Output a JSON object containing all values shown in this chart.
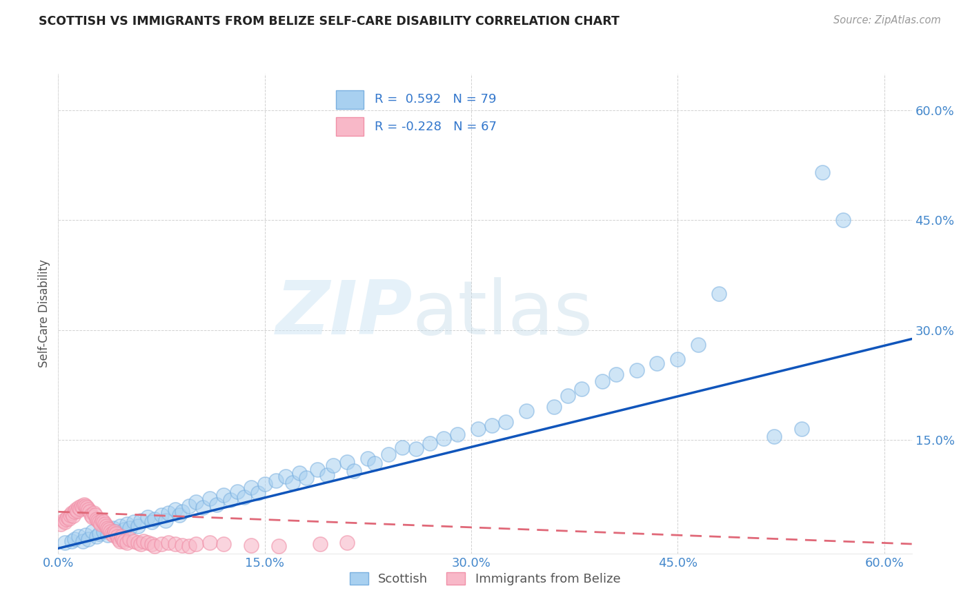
{
  "title": "SCOTTISH VS IMMIGRANTS FROM BELIZE SELF-CARE DISABILITY CORRELATION CHART",
  "source": "Source: ZipAtlas.com",
  "ylabel": "Self-Care Disability",
  "xlim": [
    0.0,
    0.62
  ],
  "ylim": [
    -0.005,
    0.65
  ],
  "xtick_labels": [
    "0.0%",
    "15.0%",
    "30.0%",
    "45.0%",
    "60.0%"
  ],
  "xtick_vals": [
    0.0,
    0.15,
    0.3,
    0.45,
    0.6
  ],
  "ytick_labels": [
    "15.0%",
    "30.0%",
    "45.0%",
    "60.0%"
  ],
  "ytick_vals": [
    0.15,
    0.3,
    0.45,
    0.6
  ],
  "r_scottish": 0.592,
  "n_scottish": 79,
  "r_belize": -0.228,
  "n_belize": 67,
  "scottish_color": "#a8d0f0",
  "scottish_edge": "#7ab0e0",
  "belize_color": "#f8b8c8",
  "belize_edge": "#f090a8",
  "trendline_scottish_color": "#1055bb",
  "trendline_belize_color": "#e06878",
  "background_color": "#ffffff",
  "scottish_x": [
    0.005,
    0.01,
    0.012,
    0.015,
    0.018,
    0.02,
    0.022,
    0.025,
    0.028,
    0.03,
    0.033,
    0.036,
    0.038,
    0.04,
    0.042,
    0.045,
    0.048,
    0.05,
    0.052,
    0.055,
    0.058,
    0.06,
    0.065,
    0.068,
    0.07,
    0.075,
    0.078,
    0.08,
    0.085,
    0.088,
    0.09,
    0.095,
    0.1,
    0.105,
    0.11,
    0.115,
    0.12,
    0.125,
    0.13,
    0.135,
    0.14,
    0.145,
    0.15,
    0.158,
    0.165,
    0.17,
    0.175,
    0.18,
    0.188,
    0.195,
    0.2,
    0.21,
    0.215,
    0.225,
    0.23,
    0.24,
    0.25,
    0.26,
    0.27,
    0.28,
    0.29,
    0.305,
    0.315,
    0.325,
    0.34,
    0.36,
    0.37,
    0.38,
    0.395,
    0.405,
    0.42,
    0.435,
    0.45,
    0.465,
    0.48,
    0.52,
    0.54,
    0.555,
    0.57
  ],
  "scottish_y": [
    0.01,
    0.012,
    0.015,
    0.018,
    0.012,
    0.02,
    0.015,
    0.025,
    0.018,
    0.022,
    0.025,
    0.02,
    0.028,
    0.03,
    0.025,
    0.032,
    0.028,
    0.035,
    0.03,
    0.038,
    0.032,
    0.04,
    0.045,
    0.038,
    0.042,
    0.048,
    0.04,
    0.05,
    0.055,
    0.048,
    0.052,
    0.06,
    0.065,
    0.058,
    0.07,
    0.062,
    0.075,
    0.068,
    0.08,
    0.072,
    0.085,
    0.078,
    0.09,
    0.095,
    0.1,
    0.092,
    0.105,
    0.098,
    0.11,
    0.102,
    0.115,
    0.12,
    0.108,
    0.125,
    0.118,
    0.13,
    0.14,
    0.138,
    0.145,
    0.152,
    0.158,
    0.165,
    0.17,
    0.175,
    0.19,
    0.195,
    0.21,
    0.22,
    0.23,
    0.24,
    0.245,
    0.255,
    0.26,
    0.28,
    0.35,
    0.155,
    0.165,
    0.515,
    0.45
  ],
  "belize_x": [
    0.002,
    0.004,
    0.005,
    0.006,
    0.007,
    0.008,
    0.009,
    0.01,
    0.011,
    0.012,
    0.013,
    0.014,
    0.015,
    0.016,
    0.017,
    0.018,
    0.019,
    0.02,
    0.021,
    0.022,
    0.023,
    0.024,
    0.025,
    0.026,
    0.027,
    0.028,
    0.029,
    0.03,
    0.031,
    0.032,
    0.033,
    0.034,
    0.035,
    0.036,
    0.037,
    0.038,
    0.039,
    0.04,
    0.041,
    0.042,
    0.043,
    0.044,
    0.045,
    0.046,
    0.047,
    0.048,
    0.05,
    0.052,
    0.055,
    0.058,
    0.06,
    0.062,
    0.065,
    0.068,
    0.07,
    0.075,
    0.08,
    0.085,
    0.09,
    0.095,
    0.1,
    0.11,
    0.12,
    0.14,
    0.16,
    0.19,
    0.21
  ],
  "belize_y": [
    0.035,
    0.04,
    0.038,
    0.042,
    0.045,
    0.043,
    0.048,
    0.05,
    0.047,
    0.052,
    0.055,
    0.053,
    0.058,
    0.056,
    0.06,
    0.058,
    0.062,
    0.06,
    0.058,
    0.055,
    0.052,
    0.048,
    0.045,
    0.05,
    0.048,
    0.042,
    0.04,
    0.038,
    0.035,
    0.04,
    0.038,
    0.035,
    0.032,
    0.03,
    0.028,
    0.025,
    0.022,
    0.02,
    0.025,
    0.022,
    0.018,
    0.015,
    0.012,
    0.018,
    0.015,
    0.012,
    0.01,
    0.015,
    0.012,
    0.01,
    0.008,
    0.012,
    0.01,
    0.008,
    0.005,
    0.008,
    0.01,
    0.008,
    0.006,
    0.005,
    0.008,
    0.01,
    0.008,
    0.006,
    0.005,
    0.008,
    0.01
  ],
  "trendline_sx_start": 0.0,
  "trendline_sx_end": 0.62,
  "trendline_sy_start": 0.002,
  "trendline_sy_end": 0.288,
  "trendline_bx_start": 0.0,
  "trendline_bx_end": 0.62,
  "trendline_by_start": 0.052,
  "trendline_by_end": 0.008
}
